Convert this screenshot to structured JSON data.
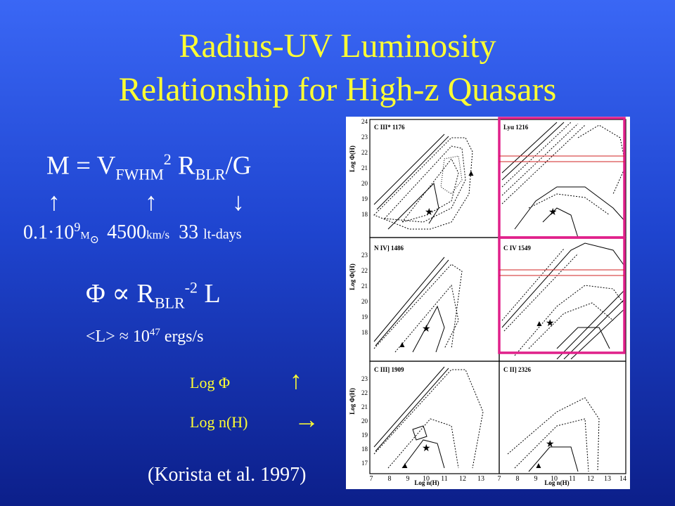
{
  "title_line1": "Radius-UV Luminosity",
  "title_line2": "Relationship for High-z Quasars",
  "mass_eq": {
    "lhs": "M = V",
    "sub1": "FWHM",
    "sup1": "2",
    "r": " R",
    "sub2": "BLR",
    "rest": "/G"
  },
  "arrows": {
    "a1": "↑",
    "a2": "↑",
    "a3": "↓"
  },
  "values": {
    "mass_num": "0.1·10",
    "mass_exp": "9",
    "mass_unit": "M",
    "sun": "⊙",
    "vel_num": "4500",
    "vel_unit": "km/s",
    "rad_num": "33",
    "rad_unit": "lt-days"
  },
  "phi_eq": {
    "lhs": "Φ ∝ R",
    "sub": "BLR",
    "sup": "-2",
    "rhs": " L"
  },
  "lum": {
    "pre": "<L> ≈ 10",
    "exp": "47",
    "post": " ergs/s"
  },
  "log_phi": {
    "label": "Log Φ",
    "arrow": "↑"
  },
  "log_nh": {
    "label": "Log n(H)",
    "arrow": "→"
  },
  "citation": "(Korista et al. 1997)",
  "figure": {
    "panels": [
      "C III* 1176",
      "Lyα 1216",
      "N IV] 1486",
      "C IV 1549",
      "C III] 1909",
      "C II] 2326"
    ],
    "ylabel": "Log Φ(H)",
    "xlabel": "Log n(H)",
    "yticks": [
      "24",
      "23",
      "22",
      "21",
      "20",
      "19",
      "18",
      "17"
    ],
    "xticks": [
      "7",
      "8",
      "9",
      "10",
      "11",
      "12",
      "13",
      "14"
    ],
    "highlight_color": "#e0208a"
  }
}
